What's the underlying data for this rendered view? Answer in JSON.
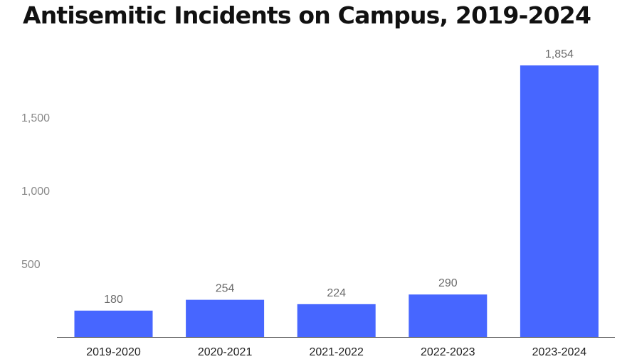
{
  "chart_data": {
    "type": "bar",
    "title": "Antisemitic Incidents on Campus, 2019-2024",
    "categories": [
      "2019-2020",
      "2020-2021",
      "2021-2022",
      "2022-2023",
      "2023-2024"
    ],
    "values": [
      180,
      254,
      224,
      290,
      1854
    ],
    "value_labels": [
      "180",
      "254",
      "224",
      "290",
      "1,854"
    ],
    "y_ticks": [
      500,
      1000,
      1500
    ],
    "y_tick_labels": [
      "500",
      "1,000",
      "1,500"
    ],
    "ylim": [
      0,
      1854
    ],
    "xlabel": "",
    "ylabel": "",
    "grid": false,
    "legend": "none",
    "colors": {
      "bar": "#4766ff",
      "axis": "#555555"
    }
  }
}
